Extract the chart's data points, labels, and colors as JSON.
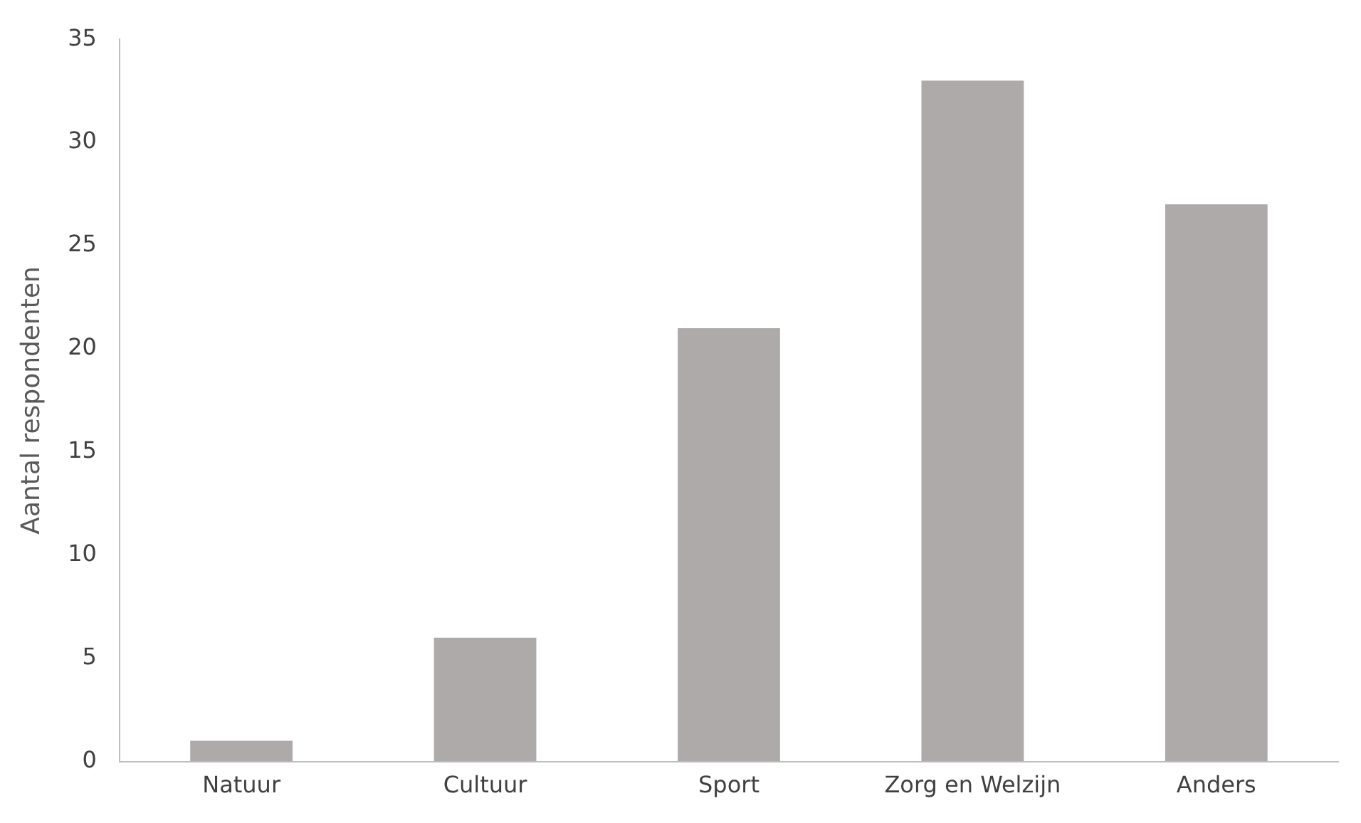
{
  "chart_data": {
    "type": "bar",
    "ylabel": "Aantal respondenten",
    "categories": [
      "Natuur",
      "Cultuur",
      "Sport",
      "Zorg en Welzijn",
      "Anders"
    ],
    "values": [
      1,
      6,
      21,
      33,
      27
    ],
    "color": "#aeaaaa",
    "ylim": [
      0,
      35
    ],
    "yticks": [
      0,
      5,
      10,
      15,
      20,
      25,
      30,
      35
    ],
    "grid": false,
    "legend": false
  }
}
